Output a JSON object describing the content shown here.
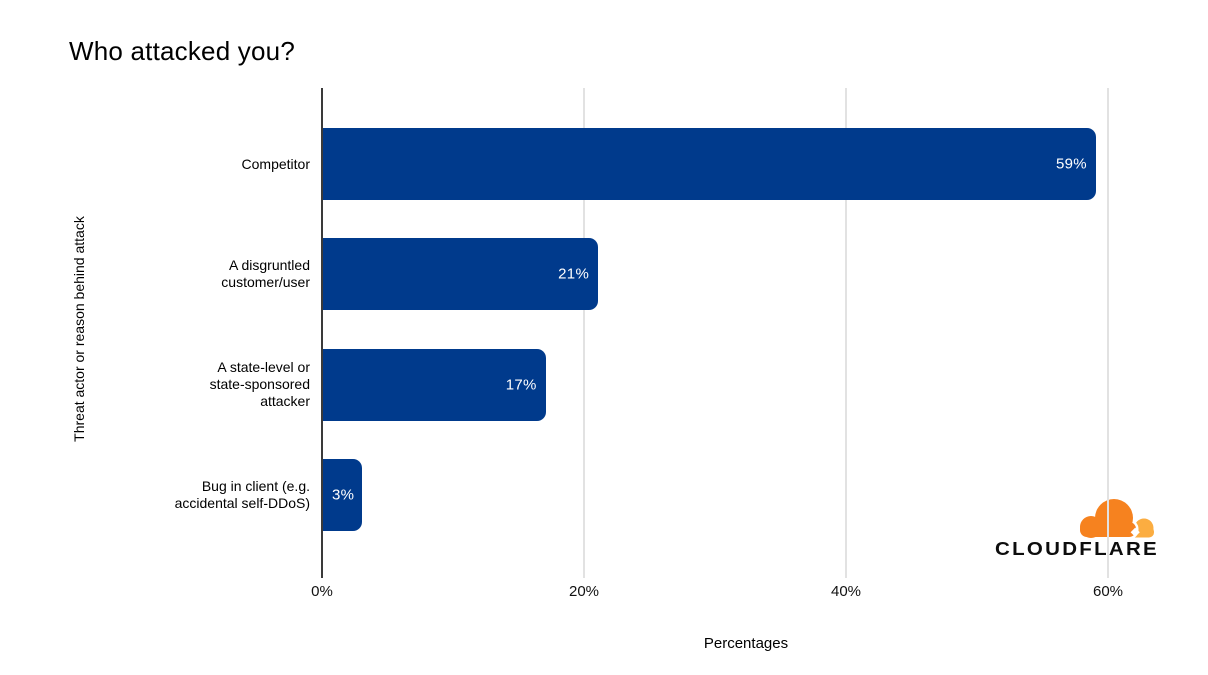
{
  "page": {
    "background": "#ffffff"
  },
  "chart_data": {
    "type": "bar",
    "orientation": "horizontal",
    "title": "Who attacked you?",
    "xlabel": "Percentages",
    "ylabel": "Threat actor or reason behind attack",
    "categories": [
      "Competitor",
      "A disgruntled customer/user",
      "A state-level or state-sponsored attacker",
      "Bug in client (e.g. accidental self-DDoS)"
    ],
    "categories_lines": [
      [
        "Competitor"
      ],
      [
        "A disgruntled",
        "customer/user"
      ],
      [
        "A state-level or",
        "state-sponsored",
        "attacker"
      ],
      [
        "Bug in client (e.g.",
        "accidental self-DDoS)"
      ]
    ],
    "values": [
      59,
      21,
      17,
      3
    ],
    "value_labels": [
      "59%",
      "21%",
      "17%",
      "3%"
    ],
    "x_ticks": [
      {
        "value": 0,
        "label": "0%"
      },
      {
        "value": 20,
        "label": "20%"
      },
      {
        "value": 40,
        "label": "40%"
      },
      {
        "value": 60,
        "label": "60%"
      }
    ],
    "xlim": [
      0,
      66
    ],
    "grid": "vertical",
    "legend": "none",
    "colors": {
      "bar": "#003A8C",
      "value_label": "#FFFFFF",
      "gridline": "#E2E2E2",
      "axis_line": "#3A3A3A",
      "text": "#000000"
    }
  },
  "branding": {
    "logo_text": "CLOUDFLARE",
    "colors": {
      "cloud_main": "#F6821F",
      "cloud_light": "#FBAD41",
      "logo_text": "#0D0D0D"
    }
  }
}
